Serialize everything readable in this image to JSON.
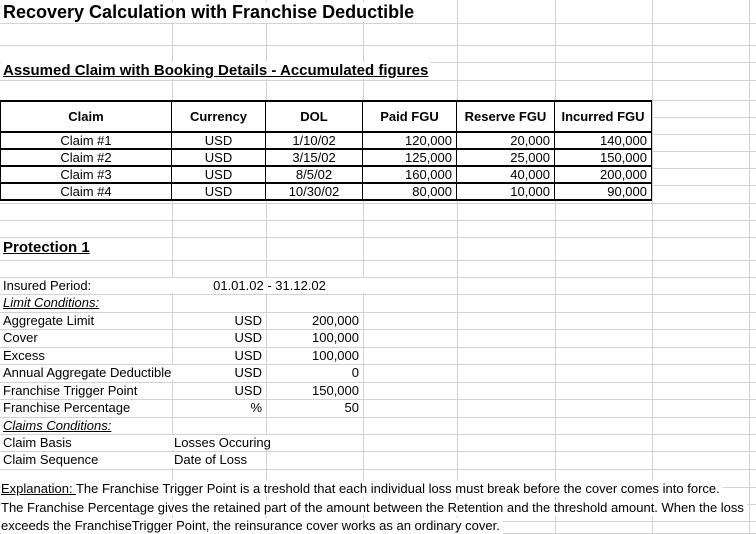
{
  "title": "Recovery Calculation with Franchise Deductible",
  "claims_section": {
    "heading": "Assumed Claim with Booking Details - Accumulated figures",
    "table": {
      "headers": [
        "Claim",
        "Currency",
        "DOL",
        "Paid FGU",
        "Reserve FGU",
        "Incurred FGU"
      ],
      "rows": [
        [
          "Claim #1",
          "USD",
          "1/10/02",
          "120,000",
          "20,000",
          "140,000"
        ],
        [
          "Claim #2",
          "USD",
          "3/15/02",
          "125,000",
          "25,000",
          "150,000"
        ],
        [
          "Claim #3",
          "USD",
          "8/5/02",
          "160,000",
          "40,000",
          "200,000"
        ],
        [
          "Claim #4",
          "USD",
          "10/30/02",
          "80,000",
          "10,000",
          "90,000"
        ]
      ]
    }
  },
  "protection": {
    "heading": "Protection 1",
    "insured_period_label": "Insured Period:",
    "insured_period_value": "01.01.02 - 31.12.02",
    "limit_conditions_heading": "Limit Conditions:",
    "limit_rows": [
      {
        "label": "Aggregate Limit",
        "unit": "USD",
        "value": "200,000"
      },
      {
        "label": "Cover",
        "unit": "USD",
        "value": "100,000"
      },
      {
        "label": "Excess",
        "unit": "USD",
        "value": "100,000"
      },
      {
        "label": "Annual Aggregate Deductible",
        "unit": "USD",
        "value": "0"
      },
      {
        "label": "Franchise Trigger Point",
        "unit": "USD",
        "value": "150,000"
      },
      {
        "label": "Franchise Percentage",
        "unit": "%",
        "value": "50"
      }
    ],
    "claims_conditions_heading": "Claims Conditions:",
    "claims_rows": [
      {
        "label": "Claim Basis",
        "value": "Losses Occuring"
      },
      {
        "label": "Claim Sequence",
        "value": "Date of Loss"
      }
    ]
  },
  "explanation": {
    "label": "Explanation: ",
    "lines": [
      "The Franchise Trigger Point is a treshold that each individual loss must break before the cover comes into force.",
      "The Franchise Percentage gives the retained part of the amount between the Retention and the threshold amount. When the loss",
      "exceeds the FranchiseTrigger Point, the reinsurance cover works as an ordinary cover."
    ]
  },
  "colors": {
    "text": "#000000",
    "gridline": "#d2d2d2",
    "background": "#ffffff",
    "table_border": "#000000"
  }
}
